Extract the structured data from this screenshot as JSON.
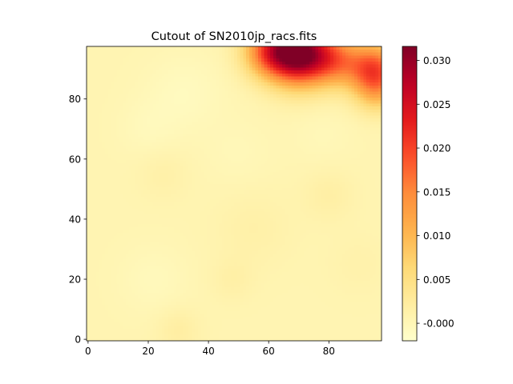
{
  "chart_data": {
    "type": "heatmap",
    "title": "Cutout of SN2010jp_racs.fits",
    "xlabel": "",
    "ylabel": "",
    "xlim": [
      -0.5,
      97.5
    ],
    "ylim": [
      -0.5,
      97.5
    ],
    "xticks": [
      0,
      20,
      40,
      60,
      80
    ],
    "yticks": [
      0,
      20,
      40,
      60,
      80
    ],
    "colormap": "YlOrRd",
    "colormap_stops": [
      "#ffffcc",
      "#ffeda0",
      "#fed976",
      "#feb24c",
      "#fd8d3c",
      "#fc4e2a",
      "#e31a1c",
      "#bd0026",
      "#800026"
    ],
    "colorbar": {
      "vmin": -0.002,
      "vmax": 0.0316,
      "ticks": [
        "-0.000",
        "0.005",
        "0.010",
        "0.015",
        "0.020",
        "0.025",
        "0.030"
      ],
      "tick_values": [
        0.0,
        0.005,
        0.01,
        0.015,
        0.02,
        0.025,
        0.03
      ]
    },
    "grid_size": [
      98,
      98
    ],
    "background_level": 0.0005,
    "features": [
      {
        "x": 70,
        "y": 95,
        "amplitude": 0.031,
        "spread": 7
      },
      {
        "x": 60,
        "y": 96,
        "amplitude": 0.014,
        "spread": 6
      },
      {
        "x": 82,
        "y": 93,
        "amplitude": 0.012,
        "spread": 6
      },
      {
        "x": 95,
        "y": 90,
        "amplitude": 0.018,
        "spread": 6
      },
      {
        "x": 96,
        "y": 82,
        "amplitude": 0.006,
        "spread": 5
      },
      {
        "x": 32,
        "y": 82,
        "amplitude": -0.0012,
        "spread": 9
      },
      {
        "x": 20,
        "y": 70,
        "amplitude": -0.0008,
        "spread": 7
      },
      {
        "x": 22,
        "y": 20,
        "amplitude": -0.0009,
        "spread": 8
      },
      {
        "x": 50,
        "y": 62,
        "amplitude": -0.0006,
        "spread": 8
      },
      {
        "x": 78,
        "y": 68,
        "amplitude": -0.0006,
        "spread": 7
      },
      {
        "x": 80,
        "y": 48,
        "amplitude": 0.0012,
        "spread": 6
      },
      {
        "x": 55,
        "y": 37,
        "amplitude": 0.0009,
        "spread": 9
      },
      {
        "x": 30,
        "y": 3,
        "amplitude": 0.0015,
        "spread": 5
      },
      {
        "x": 48,
        "y": 20,
        "amplitude": 0.001,
        "spread": 5
      },
      {
        "x": 25,
        "y": 55,
        "amplitude": 0.0009,
        "spread": 6
      },
      {
        "x": 90,
        "y": 25,
        "amplitude": 0.0006,
        "spread": 7
      }
    ]
  }
}
